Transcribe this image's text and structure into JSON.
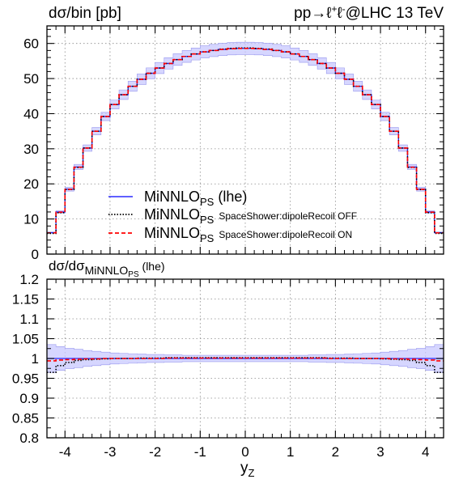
{
  "chart_data": [
    {
      "type": "line",
      "title_left": "dσ/bin [pb]",
      "title_right_base": "pp→ℓ",
      "title_right_mid": "ℓ",
      "title_right_sup1": "+",
      "title_right_sup2": "-",
      "title_right_end": "@LHC 13 TeV",
      "xlim": [
        -4.4,
        4.4
      ],
      "ylim": [
        0,
        65
      ],
      "yticks": [
        "0",
        "10",
        "20",
        "30",
        "40",
        "50",
        "60"
      ],
      "bin_edges": [
        -4.4,
        -4.2,
        -4.0,
        -3.8,
        -3.6,
        -3.4,
        -3.2,
        -3.0,
        -2.8,
        -2.6,
        -2.4,
        -2.2,
        -2.0,
        -1.8,
        -1.6,
        -1.4,
        -1.2,
        -1.0,
        -0.8,
        -0.6,
        -0.4,
        -0.2,
        0.0,
        0.2,
        0.4,
        0.6,
        0.8,
        1.0,
        1.2,
        1.4,
        1.6,
        1.8,
        2.0,
        2.2,
        2.4,
        2.6,
        2.8,
        3.0,
        3.2,
        3.4,
        3.6,
        3.8,
        4.0,
        4.2,
        4.4
      ],
      "band_rel_width": 0.03,
      "legend": {
        "entries": [
          {
            "main": "MiNNLO",
            "sub": "PS",
            "suffix": " (lhe)",
            "small": "",
            "color": "#2a2aff",
            "dash": "solid"
          },
          {
            "main": "MiNNLO",
            "sub": "PS",
            "suffix": "",
            "small": "SpaceShower:dipoleRecoil OFF",
            "color": "#000000",
            "dash": "dotted"
          },
          {
            "main": "MiNNLO",
            "sub": "PS",
            "suffix": "",
            "small": "SpaceShower:dipoleRecoil ON",
            "color": "#ff0000",
            "dash": "dashed"
          }
        ]
      },
      "series": [
        {
          "name": "MiNNLOPS (lhe)",
          "color": "#2a2aff",
          "values": [
            6.1,
            12.0,
            18.5,
            24.8,
            30.2,
            35.0,
            39.2,
            42.6,
            45.4,
            47.8,
            49.8,
            51.5,
            53.0,
            54.3,
            55.4,
            56.3,
            57.0,
            57.6,
            58.0,
            58.3,
            58.5,
            58.6,
            58.6,
            58.5,
            58.3,
            58.0,
            57.6,
            57.0,
            56.3,
            55.4,
            54.3,
            53.0,
            51.5,
            49.8,
            47.8,
            45.4,
            42.6,
            39.2,
            35.0,
            30.2,
            24.8,
            18.5,
            12.0,
            6.1
          ]
        },
        {
          "name": "MiNNLOPS SpaceShower:dipoleRecoil OFF",
          "color": "#000000",
          "values": [
            5.9,
            11.8,
            18.4,
            24.7,
            30.2,
            35.0,
            39.2,
            42.6,
            45.4,
            47.8,
            49.8,
            51.5,
            53.0,
            54.3,
            55.4,
            56.3,
            57.0,
            57.6,
            58.0,
            58.4,
            58.6,
            58.7,
            58.7,
            58.6,
            58.4,
            58.0,
            57.6,
            57.0,
            56.3,
            55.4,
            54.3,
            53.0,
            51.5,
            49.8,
            47.8,
            45.4,
            42.6,
            39.2,
            35.0,
            30.2,
            24.7,
            18.4,
            11.8,
            5.9
          ]
        },
        {
          "name": "MiNNLOPS SpaceShower:dipoleRecoil ON",
          "color": "#ff0000",
          "values": [
            6.05,
            11.95,
            18.45,
            24.75,
            30.2,
            35.0,
            39.2,
            42.6,
            45.4,
            47.8,
            49.8,
            51.5,
            53.0,
            54.3,
            55.4,
            56.3,
            57.0,
            57.6,
            58.0,
            58.3,
            58.5,
            58.6,
            58.6,
            58.5,
            58.3,
            58.0,
            57.6,
            57.0,
            56.3,
            55.4,
            54.3,
            53.0,
            51.5,
            49.8,
            47.8,
            45.4,
            42.6,
            39.2,
            35.0,
            30.2,
            24.75,
            18.45,
            11.95,
            6.05
          ]
        }
      ]
    },
    {
      "type": "line",
      "ylabel_main": "dσ/dσ",
      "ylabel_sub": "MiNNLO",
      "ylabel_subsub": "PS",
      "ylabel_suffix": " (lhe)",
      "xlabel_main": "y",
      "xlabel_sub": "Z",
      "xlim": [
        -4.4,
        4.4
      ],
      "ylim": [
        0.8,
        1.2
      ],
      "yticks": [
        "0.8",
        "0.85",
        "0.9",
        "0.95",
        "1",
        "1.05",
        "1.1",
        "1.15",
        "1.2"
      ],
      "xticks": [
        "-4",
        "-3",
        "-2",
        "-1",
        "0",
        "1",
        "2",
        "3",
        "4"
      ],
      "band_half": [
        0.035,
        0.03,
        0.026,
        0.023,
        0.02,
        0.018,
        0.016,
        0.014,
        0.013,
        0.012,
        0.011,
        0.01,
        0.01,
        0.009,
        0.009,
        0.008,
        0.008,
        0.008,
        0.008,
        0.008,
        0.008,
        0.008,
        0.008,
        0.008,
        0.008,
        0.008,
        0.008,
        0.008,
        0.008,
        0.009,
        0.009,
        0.01,
        0.01,
        0.011,
        0.012,
        0.013,
        0.014,
        0.016,
        0.018,
        0.02,
        0.023,
        0.026,
        0.03,
        0.035
      ],
      "series": [
        {
          "name": "lhe",
          "color": "#2a2aff",
          "values_const": 1.0
        },
        {
          "name": "dipoleRecoil OFF",
          "color": "#000000",
          "values": [
            0.965,
            0.982,
            0.99,
            0.995,
            0.997,
            0.998,
            0.999,
            1.0,
            1.0,
            1.0,
            1.001,
            1.001,
            1.001,
            1.002,
            1.002,
            1.002,
            1.002,
            1.002,
            1.002,
            1.002,
            1.002,
            1.002,
            1.002,
            1.002,
            1.002,
            1.002,
            1.002,
            1.002,
            1.002,
            1.002,
            1.002,
            1.001,
            1.001,
            1.001,
            1.0,
            1.0,
            1.0,
            0.999,
            0.998,
            0.997,
            0.995,
            0.99,
            0.982,
            0.965
          ]
        },
        {
          "name": "dipoleRecoil ON",
          "color": "#ff0000",
          "values": [
            0.994,
            0.996,
            0.997,
            0.998,
            0.999,
            0.999,
            1.0,
            1.0,
            1.0,
            1.0,
            1.0,
            1.0,
            1.0,
            1.001,
            1.001,
            1.001,
            1.001,
            1.001,
            1.001,
            1.001,
            1.001,
            1.001,
            1.001,
            1.001,
            1.001,
            1.001,
            1.001,
            1.001,
            1.001,
            1.001,
            1.001,
            1.0,
            1.0,
            1.0,
            1.0,
            1.0,
            1.0,
            1.0,
            0.999,
            0.999,
            0.998,
            0.997,
            0.996,
            0.994
          ]
        }
      ]
    }
  ]
}
